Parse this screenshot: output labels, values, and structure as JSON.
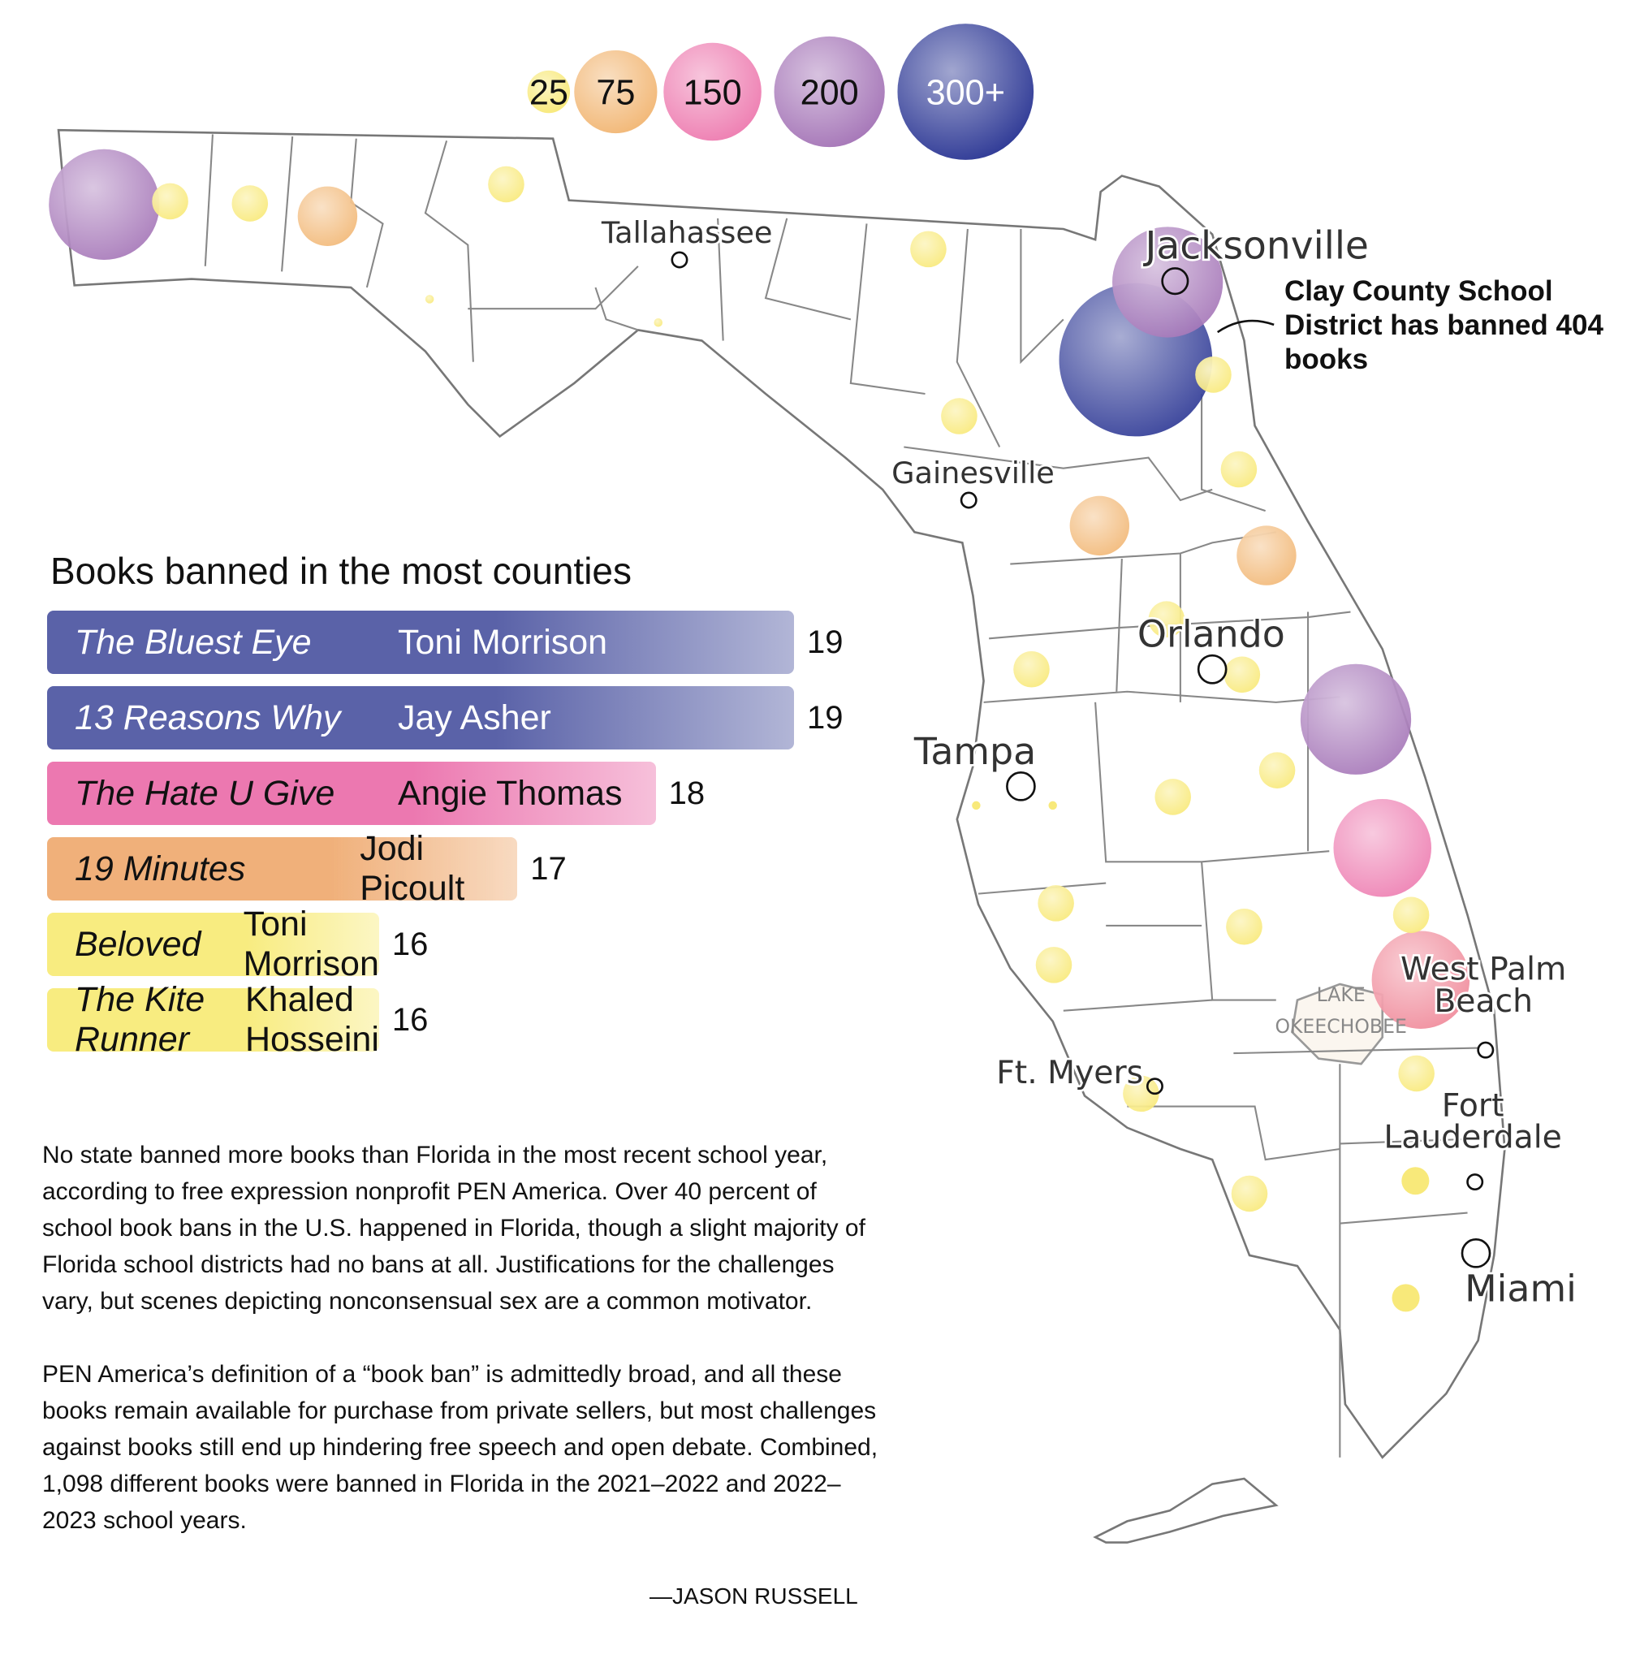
{
  "legend": {
    "items": [
      {
        "label": "25",
        "color": "#f8e97a"
      },
      {
        "label": "75",
        "color": "#f2b877"
      },
      {
        "label": "150",
        "color": "#ee7fb2"
      },
      {
        "label": "200",
        "color": "#a677b8"
      },
      {
        "label": "300+",
        "color": "#2f3a96"
      }
    ]
  },
  "map": {
    "cities": [
      {
        "name": "Tallahassee"
      },
      {
        "name": "Jacksonville"
      },
      {
        "name": "Gainesville"
      },
      {
        "name": "Orlando"
      },
      {
        "name": "Tampa"
      },
      {
        "name": "West Palm Beach"
      },
      {
        "name": "Ft. Myers"
      },
      {
        "name": "Fort Lauderdale"
      },
      {
        "name": "Miami"
      }
    ],
    "lake_label": [
      "LAKE",
      "OKEECHOBEE"
    ],
    "annotation": "Clay County School District has banned 404 books",
    "bubbles": [
      {
        "level": "200"
      },
      {
        "level": "25"
      },
      {
        "level": "25"
      },
      {
        "level": "75"
      },
      {
        "level": "25"
      },
      {
        "level": "25"
      },
      {
        "level": "25"
      },
      {
        "level": "200"
      },
      {
        "level": "300+"
      },
      {
        "level": "25"
      },
      {
        "level": "25"
      },
      {
        "level": "25"
      },
      {
        "level": "75"
      },
      {
        "level": "75"
      },
      {
        "level": "25"
      },
      {
        "level": "25"
      },
      {
        "level": "25"
      },
      {
        "level": "200"
      },
      {
        "level": "25"
      },
      {
        "level": "25"
      },
      {
        "level": "150"
      },
      {
        "level": "25"
      },
      {
        "level": "25"
      },
      {
        "level": "25"
      },
      {
        "level": "150"
      },
      {
        "level": "25"
      },
      {
        "level": "25"
      },
      {
        "level": "25"
      },
      {
        "level": "25"
      },
      {
        "level": "25"
      }
    ]
  },
  "chart_data": {
    "type": "bar",
    "title": "Books banned in the most counties",
    "categories": [
      "The Bluest Eye",
      "13 Reasons Why",
      "The Hate U Give",
      "19 Minutes",
      "Beloved",
      "The Kite Runner"
    ],
    "authors": [
      "Toni Morrison",
      "Jay Asher",
      "Angie Thomas",
      "Jodi Picoult",
      "Toni Morrison",
      "Khaled Hosseini"
    ],
    "values": [
      19,
      19,
      18,
      17,
      16,
      16
    ],
    "colors": [
      "#5a62a8",
      "#5a62a8",
      "#ec78b0",
      "#f0b07a",
      "#f8ec80",
      "#f8ec80"
    ]
  },
  "text": {
    "paragraphs": [
      "No state banned more books than Florida in the most recent school year, according to free expression nonprofit PEN America. Over 40 percent of school book bans in the U.S. happened in Florida, though a slight majority of Florida school districts had no bans at all. Justifications for the challenges vary, but scenes depicting nonconsensual sex are a common motivator.",
      "PEN America’s definition of a “book ban” is admittedly broad, and all these books remain available for purchase from private sellers, but most challenges against books still end up hindering free speech and open debate. Combined, 1,098 different books were banned in Florida in the 2021–2022 and 2022–2023 school years."
    ],
    "byline": "—JASON RUSSELL"
  }
}
